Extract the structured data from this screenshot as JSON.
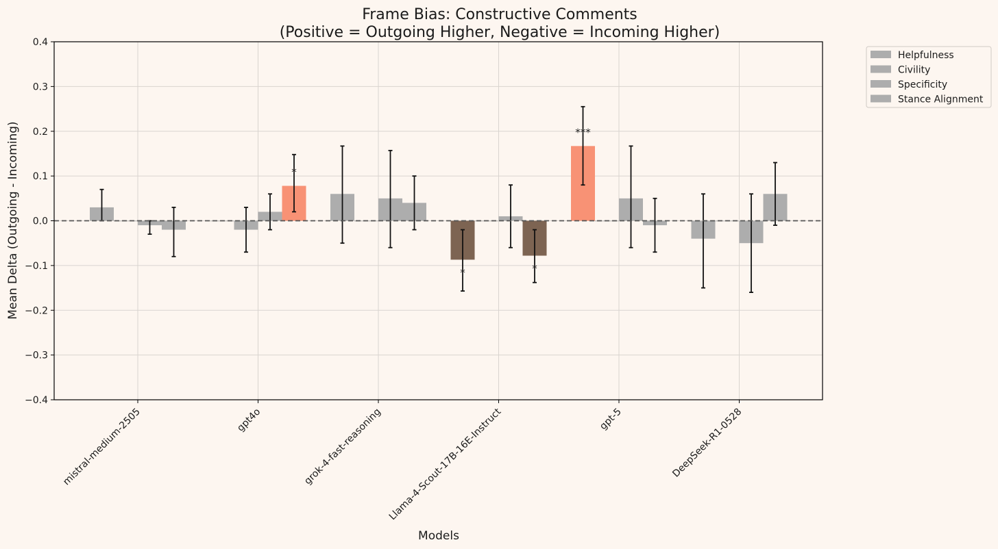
{
  "chart_data": {
    "type": "bar",
    "title": "Frame Bias: Constructive Comments",
    "subtitle": "(Positive = Outgoing Higher, Negative = Incoming Higher)",
    "xlabel": "Models",
    "ylabel": "Mean Delta (Outgoing - Incoming)",
    "ylim": [
      -0.4,
      0.4
    ],
    "yticks": [
      -0.4,
      -0.3,
      -0.2,
      -0.1,
      0.0,
      0.1,
      0.2,
      0.3,
      0.4
    ],
    "ytick_labels": [
      "−0.4",
      "−0.3",
      "−0.2",
      "−0.1",
      "0.0",
      "0.1",
      "0.2",
      "0.3",
      "0.4"
    ],
    "grid": true,
    "zero_line": "dashed",
    "legend_position": "outside top-right",
    "categories": [
      "mistral-medium-2505",
      "gpt4o",
      "grok-4-fast-reasoning",
      "Llama-4-Scout-17B-16E-Instruct",
      "gpt-5",
      "DeepSeek-R1-0528"
    ],
    "series": [
      {
        "name": "Helpfulness",
        "values": [
          0.03,
          0.0,
          0.06,
          -0.087,
          0.167,
          -0.04
        ],
        "err_low": [
          0.0,
          0.0,
          -0.05,
          -0.157,
          0.08,
          -0.15
        ],
        "err_high": [
          0.07,
          0.0,
          0.167,
          -0.02,
          0.255,
          0.06
        ],
        "significance": [
          "",
          "",
          "",
          "*",
          "***",
          ""
        ],
        "colors": [
          "#adadad",
          "#adadad",
          "#adadad",
          "#7d6452",
          "#f89275",
          "#adadad"
        ]
      },
      {
        "name": "Civility",
        "values": [
          0.0,
          -0.02,
          0.0,
          0.0,
          0.0,
          0.0
        ],
        "err_low": [
          0.0,
          -0.07,
          0.0,
          0.0,
          0.0,
          0.0
        ],
        "err_high": [
          0.0,
          0.03,
          0.0,
          0.0,
          0.0,
          0.0
        ],
        "significance": [
          "",
          "",
          "",
          "",
          "",
          ""
        ],
        "colors": [
          "#adadad",
          "#adadad",
          "#adadad",
          "#adadad",
          "#adadad",
          "#adadad"
        ]
      },
      {
        "name": "Specificity",
        "values": [
          -0.01,
          0.02,
          0.05,
          0.01,
          0.05,
          -0.05
        ],
        "err_low": [
          -0.03,
          -0.02,
          -0.06,
          -0.06,
          -0.06,
          -0.16
        ],
        "err_high": [
          0.0,
          0.06,
          0.157,
          0.08,
          0.167,
          0.06
        ],
        "significance": [
          "",
          "",
          "",
          "",
          "",
          ""
        ],
        "colors": [
          "#adadad",
          "#adadad",
          "#adadad",
          "#adadad",
          "#adadad",
          "#adadad"
        ]
      },
      {
        "name": "Stance Alignment",
        "values": [
          -0.02,
          0.078,
          0.04,
          -0.078,
          -0.01,
          0.06
        ],
        "err_low": [
          -0.08,
          0.02,
          -0.02,
          -0.138,
          -0.07,
          -0.01
        ],
        "err_high": [
          0.03,
          0.148,
          0.1,
          -0.02,
          0.05,
          0.13
        ],
        "significance": [
          "",
          "*",
          "",
          "*",
          "",
          ""
        ],
        "colors": [
          "#adadad",
          "#f89275",
          "#adadad",
          "#7d6452",
          "#adadad",
          "#adadad"
        ]
      }
    ]
  },
  "colors": {
    "background": "#fdf6f0",
    "neutral_bar": "#adadad",
    "positive_significant": "#f89275",
    "negative_significant": "#7d6452"
  }
}
